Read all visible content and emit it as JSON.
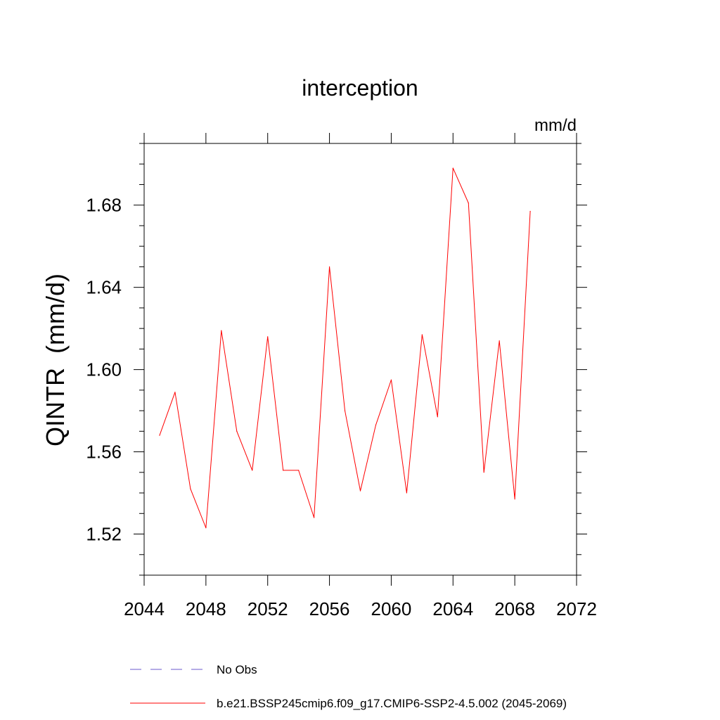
{
  "chart_data": {
    "type": "line",
    "title": "interception",
    "units_label": "mm/d",
    "ylabel": "QINTR  (mm/d)",
    "xlabel": "",
    "xlim": [
      2044,
      2072
    ],
    "ylim": [
      1.5,
      1.71
    ],
    "x_ticks": [
      2044,
      2048,
      2052,
      2056,
      2060,
      2064,
      2068,
      2072
    ],
    "x_tick_labels": [
      "2044",
      "2048",
      "2052",
      "2056",
      "2060",
      "2064",
      "2068",
      "2072"
    ],
    "y_ticks": [
      1.52,
      1.56,
      1.6,
      1.64,
      1.68
    ],
    "y_tick_labels": [
      "1.52",
      "1.56",
      "1.60",
      "1.64",
      "1.68"
    ],
    "grid": false,
    "legend_position": "bottom",
    "series": [
      {
        "name": "b.e21.BSSP245cmip6.f09_g17.CMIP6-SSP2-4.5.002 (2045-2069)",
        "color": "#ff0000",
        "style": "solid",
        "x": [
          2045,
          2046,
          2047,
          2048,
          2049,
          2050,
          2051,
          2052,
          2053,
          2054,
          2055,
          2056,
          2057,
          2058,
          2059,
          2060,
          2061,
          2062,
          2063,
          2064,
          2065,
          2066,
          2067,
          2068,
          2069
        ],
        "y": [
          1.568,
          1.589,
          1.542,
          1.523,
          1.619,
          1.57,
          1.551,
          1.616,
          1.551,
          1.551,
          1.528,
          1.65,
          1.58,
          1.541,
          1.573,
          1.595,
          1.54,
          1.617,
          1.577,
          1.698,
          1.681,
          1.55,
          1.614,
          1.537,
          1.677
        ]
      }
    ],
    "legend": [
      {
        "label": "No Obs",
        "color": "#6a5acd",
        "style": "dashed"
      },
      {
        "label": "b.e21.BSSP245cmip6.f09_g17.CMIP6-SSP2-4.5.002 (2045-2069)",
        "color": "#ff0000",
        "style": "solid"
      }
    ]
  }
}
